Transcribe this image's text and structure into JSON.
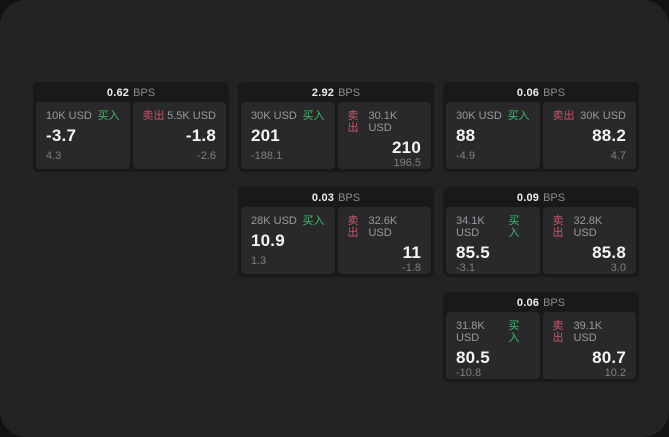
{
  "app": {
    "bps_unit": "BPS",
    "buy_label": "买入",
    "sell_label": "卖出",
    "colors": {
      "buy_green": "#3dbd6e",
      "sell_red": "#c9566a",
      "panel_bg": "#232324",
      "card_bg": "#191919",
      "tile_bg": "#29292b"
    }
  },
  "cards": [
    {
      "bps": "0.62",
      "buy": {
        "amount": "10K USD",
        "price": "-3.7",
        "change": "4.3"
      },
      "sell": {
        "amount": "5.5K USD",
        "price": "-1.8",
        "change": "-2.6"
      }
    },
    {
      "bps": "2.92",
      "buy": {
        "amount": "30K USD",
        "price": "201",
        "change": "-188.1"
      },
      "sell": {
        "amount": "30.1K USD",
        "price": "210",
        "change": "196.5"
      }
    },
    {
      "bps": "0.06",
      "buy": {
        "amount": "30K USD",
        "price": "88",
        "change": "-4.9"
      },
      "sell": {
        "amount": "30K USD",
        "price": "88.2",
        "change": "4.7"
      }
    },
    {
      "bps": "0.03",
      "buy": {
        "amount": "28K USD",
        "price": "10.9",
        "change": "1.3"
      },
      "sell": {
        "amount": "32.6K USD",
        "price": "11",
        "change": "-1.8"
      }
    },
    {
      "bps": "0.09",
      "buy": {
        "amount": "34.1K USD",
        "price": "85.5",
        "change": "-3.1"
      },
      "sell": {
        "amount": "32.8K USD",
        "price": "85.8",
        "change": "3.0"
      }
    },
    {
      "bps": "0.06",
      "buy": {
        "amount": "31.8K USD",
        "price": "80.5",
        "change": "-10.8"
      },
      "sell": {
        "amount": "39.1K USD",
        "price": "80.7",
        "change": "10.2"
      }
    }
  ]
}
